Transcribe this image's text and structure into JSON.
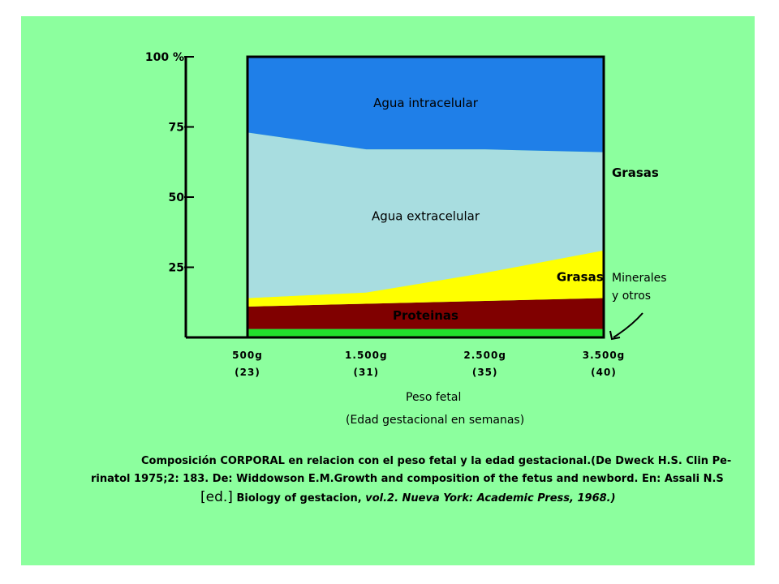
{
  "colors": {
    "background": "#8cff9e",
    "agua_intracelular": "#1f7fe8",
    "agua_extracelular": "#a8dde0",
    "grasas": "#ffff00",
    "proteinas": "#800000",
    "minerales": "#22e02c"
  },
  "chart_data": {
    "type": "area",
    "stacked": true,
    "x": [
      500,
      1500,
      2500,
      3500
    ],
    "categories": [
      "500g",
      "1.500g",
      "2.500g",
      "3.500g"
    ],
    "weeks": [
      "(23)",
      "(31)",
      "(35)",
      "(40)"
    ],
    "ylim": [
      0,
      100
    ],
    "yticks": [
      {
        "value": 25,
        "label": "25"
      },
      {
        "value": 50,
        "label": "50"
      },
      {
        "value": 75,
        "label": "75"
      },
      {
        "value": 100,
        "label": "100 %"
      }
    ],
    "series": [
      {
        "name": "Minerales y otros",
        "key": "minerales",
        "values": [
          3,
          3,
          3,
          3
        ]
      },
      {
        "name": "Proteinas",
        "key": "proteinas",
        "values": [
          8,
          9,
          10,
          11
        ]
      },
      {
        "name": "Grasas",
        "key": "grasas",
        "values": [
          3,
          4,
          10,
          17
        ]
      },
      {
        "name": "Agua extracelular",
        "key": "agua_extracelular",
        "values": [
          59,
          51,
          44,
          35
        ]
      },
      {
        "name": "Agua intracelular",
        "key": "agua_intracelular",
        "values": [
          27,
          33,
          33,
          34
        ]
      }
    ],
    "band_labels": {
      "agua_intracelular": "Agua intracelular",
      "agua_extracelular": "Agua extracelular",
      "grasas": "Grasas",
      "proteinas": "Proteinas"
    },
    "side_labels": {
      "grasas": "Grasas",
      "minerales_line1": "Minerales",
      "minerales_line2": "y otros"
    },
    "xlabel": "Peso fetal",
    "xlabel2": "(Edad gestacional en semanas)"
  },
  "caption": {
    "line1": "Composición CORPORAL en relacion con el peso fetal y la edad gestacional.(De Dweck H.S. Clin Pe-",
    "line2": "rinatol 1975;2: 183. De: Widdowson E.M.Growth and composition of the fetus and newbord. En: Assali N.S",
    "line3_bracket": "[ed.]",
    "line3_main": " Biology of gestacion, ",
    "line3_italic": "vol.2. Nueva York: Academic Press, 1968.)"
  }
}
